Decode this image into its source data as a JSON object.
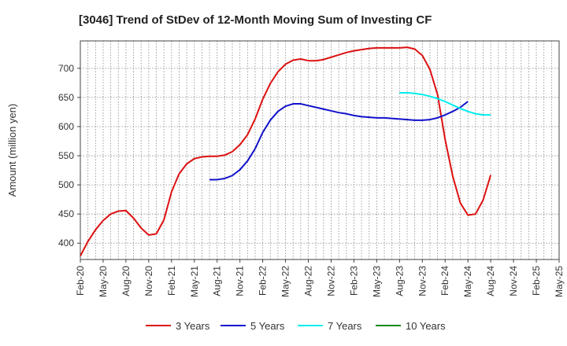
{
  "chart_data": {
    "type": "line",
    "title": "[3046]  Trend of StDev of 12-Month Moving Sum of Investing CF",
    "xlabel": "",
    "ylabel": "Amount (million yen)",
    "ylim": [
      372,
      747
    ],
    "yticks": [
      400,
      450,
      500,
      550,
      600,
      650,
      700
    ],
    "x_tick_labels": [
      "Feb-20",
      "May-20",
      "Aug-20",
      "Nov-20",
      "Feb-21",
      "May-21",
      "Aug-21",
      "Nov-21",
      "Feb-22",
      "May-22",
      "Aug-22",
      "Nov-22",
      "Feb-23",
      "May-23",
      "Aug-23",
      "Nov-23",
      "Feb-24",
      "May-24",
      "Aug-24",
      "Nov-24",
      "Feb-25",
      "May-25"
    ],
    "x_start": "2020-02",
    "x_end": "2025-05",
    "grid": true,
    "legend_position": "bottom",
    "series": [
      {
        "name": "3 Years",
        "color": "#dd1111",
        "start": "2020-02",
        "values": [
          378,
          403,
          423,
          439,
          450,
          455,
          456,
          443,
          426,
          414,
          416,
          440,
          488,
          519,
          536,
          545,
          548,
          549,
          549,
          551,
          557,
          569,
          586,
          613,
          647,
          674,
          694,
          707,
          714,
          716,
          713,
          713,
          715,
          719,
          723,
          727,
          730,
          732,
          734,
          735,
          735,
          735,
          735,
          736,
          733,
          722,
          698,
          655,
          578,
          515,
          469,
          448,
          450,
          474,
          517
        ]
      },
      {
        "name": "5 Years",
        "color": "#1111cc",
        "start": "2021-07",
        "values": [
          509,
          509,
          511,
          516,
          526,
          541,
          562,
          590,
          611,
          626,
          635,
          639,
          639,
          636,
          633,
          630,
          627,
          624,
          622,
          619,
          617,
          616,
          615,
          615,
          614,
          613,
          612,
          611,
          611,
          612,
          615,
          620,
          626,
          633,
          643
        ]
      },
      {
        "name": "7 Years",
        "color": "#00eeee",
        "start": "2023-08",
        "values": [
          658,
          658,
          657,
          655,
          652,
          648,
          643,
          637,
          631,
          626,
          622,
          620,
          620
        ]
      },
      {
        "name": "10 Years",
        "color": "#118811",
        "start": "2023-08",
        "values": []
      }
    ]
  }
}
